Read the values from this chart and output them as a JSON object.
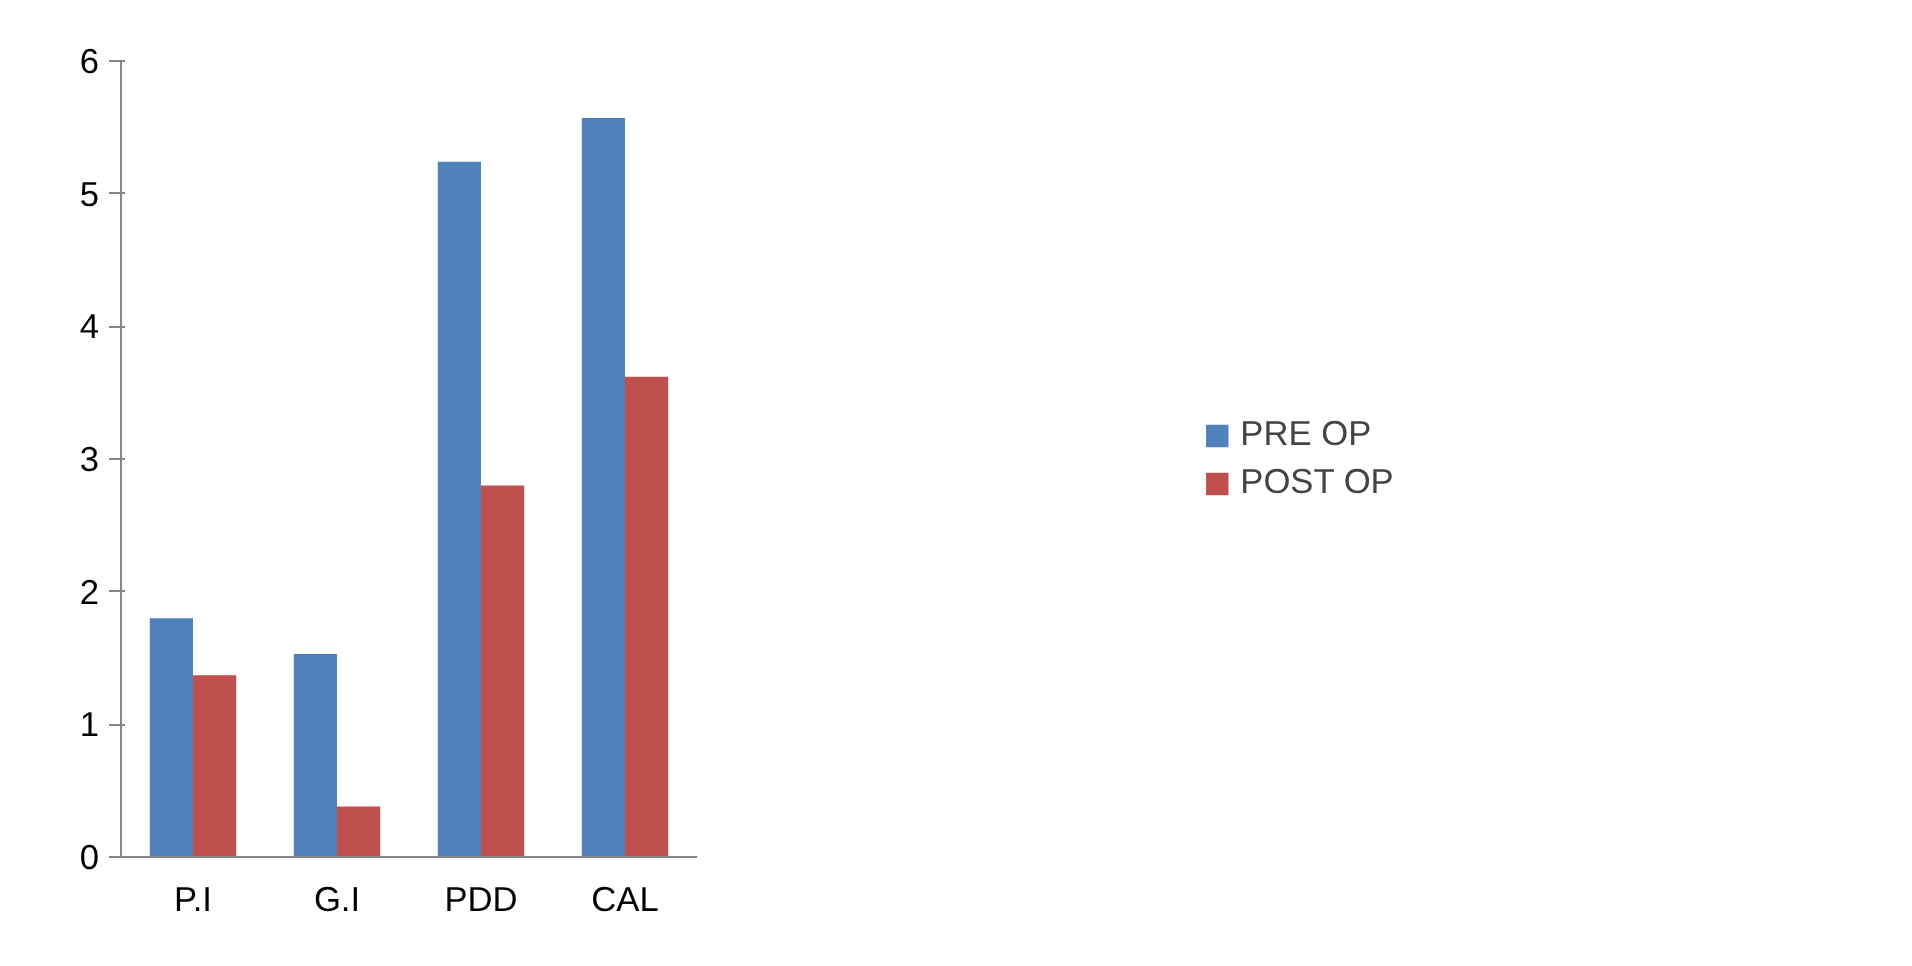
{
  "chart_data": {
    "type": "bar",
    "categories": [
      "P.I",
      "G.I",
      "PDD",
      "CAL"
    ],
    "series": [
      {
        "name": "PRE OP",
        "color": "#4f81bd",
        "values": [
          1.8,
          1.53,
          5.24,
          5.57
        ]
      },
      {
        "name": "POST OP",
        "color": "#c0504d",
        "values": [
          1.37,
          0.38,
          2.8,
          3.62
        ]
      }
    ],
    "ylim": [
      0,
      6
    ],
    "yticks": [
      0,
      1,
      2,
      3,
      4,
      5,
      6
    ],
    "grid": false,
    "legend": "right"
  }
}
